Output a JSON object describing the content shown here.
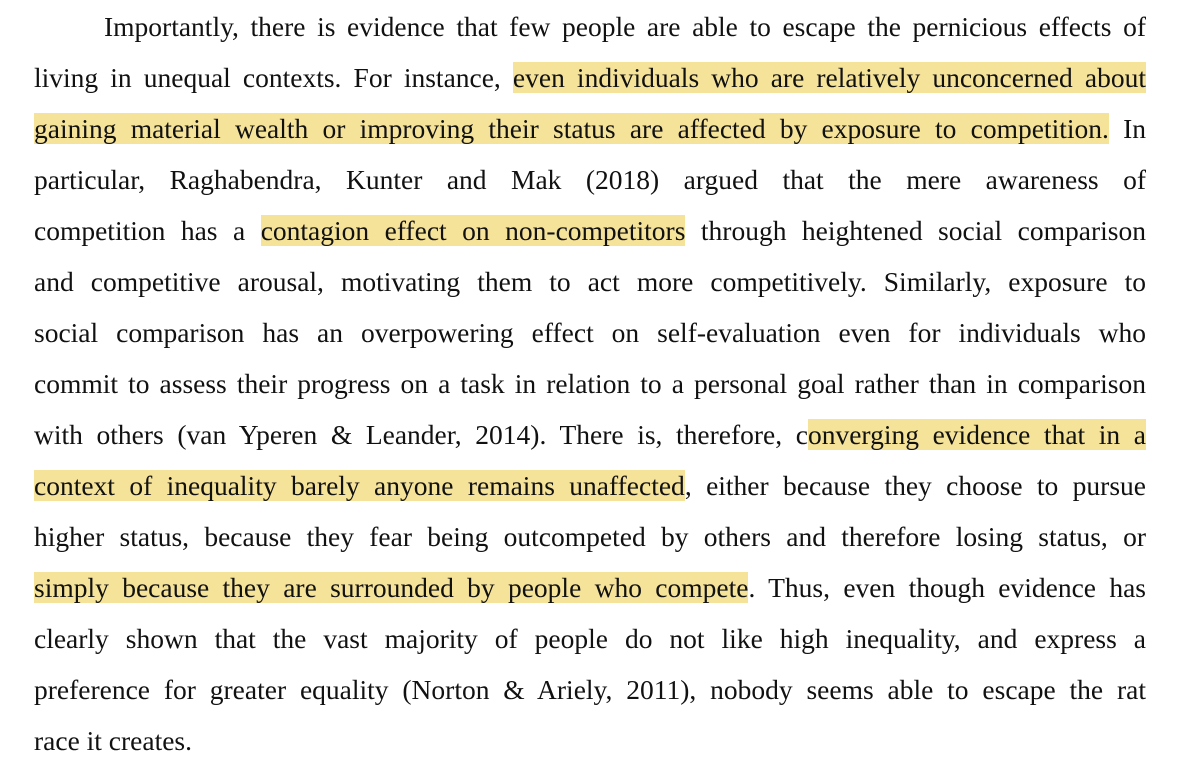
{
  "document": {
    "lines": [
      [
        "Importantly, there is evidence that few people are able to escape the pernicious effects of"
      ],
      [
        "living in unequal contexts. For instance, ",
        "even individuals who are relatively unconcerned about"
      ],
      [
        "gaining material wealth or improving their status are affected by exposure to competition.",
        " In"
      ],
      [
        "particular, Raghabendra, Kunter and Mak (2018) argued that the mere awareness of"
      ],
      [
        "competition has a ",
        "contagion effect on non-competitors",
        " through heightened social comparison"
      ],
      [
        "and competitive arousal, motivating them to act more competitively. Similarly, exposure to"
      ],
      [
        "social comparison has an overpowering effect on self-evaluation even for individuals who"
      ],
      [
        "commit to assess their progress on a task in relation to a personal goal rather than in comparison"
      ],
      [
        "with others (van Yperen & Leander, 2014). There is, therefore, c",
        "onverging evidence that in a"
      ],
      [
        "context of inequality barely anyone remains unaffected",
        ", either because they choose to pursue"
      ],
      [
        "higher status, because they fear being outcompeted by others and therefore losing status, or"
      ],
      [
        "simply because they are surrounded by people who compete",
        ". Thus, even though evidence has"
      ],
      [
        "clearly shown that the vast majority of people do not like high inequality, and express a"
      ],
      [
        "preference for greater equality (Norton & Ariely, 2011), nobody seems able to escape the rat"
      ],
      [
        "race it creates."
      ]
    ],
    "highlight_color": "#f6e39a"
  }
}
